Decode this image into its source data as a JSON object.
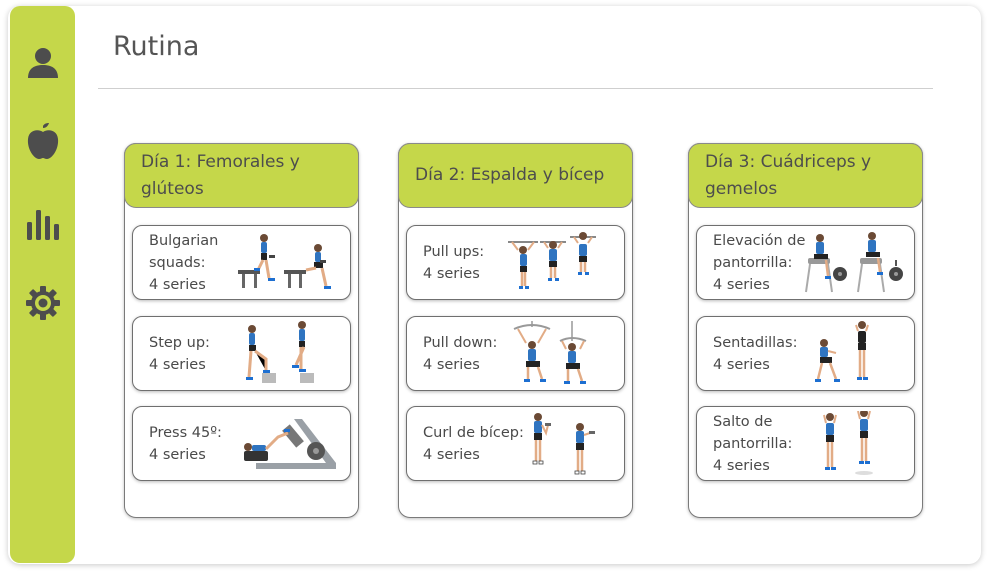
{
  "page": {
    "title": "Rutina"
  },
  "sidebar": {
    "items": [
      {
        "icon": "user-icon"
      },
      {
        "icon": "apple-icon"
      },
      {
        "icon": "bar-chart-icon"
      },
      {
        "icon": "gear-icon"
      }
    ]
  },
  "colors": {
    "accent": "#c5d74a",
    "text": "#555555",
    "border": "#7a7a7a"
  },
  "days": [
    {
      "title": "Día 1: Femorales y glúteos",
      "exercises": [
        {
          "name": "Bulgarian squads:",
          "sets": "4 series"
        },
        {
          "name": "Step up:",
          "sets": "4 series"
        },
        {
          "name": "Press 45º:",
          "sets": "4 series"
        }
      ]
    },
    {
      "title": "Día 2: Espalda y bícep",
      "exercises": [
        {
          "name": "Pull ups:",
          "sets": "4 series"
        },
        {
          "name": "Pull down:",
          "sets": "4 series"
        },
        {
          "name": "Curl de bícep:",
          "sets": "4 series"
        }
      ]
    },
    {
      "title": "Día 3: Cuádriceps y gemelos",
      "exercises": [
        {
          "name": "Elevación de pantorrilla:",
          "sets": "4 series"
        },
        {
          "name": "Sentadillas:",
          "sets": "4 series"
        },
        {
          "name": "Salto de pantorrilla:",
          "sets": "4 series"
        }
      ]
    }
  ]
}
